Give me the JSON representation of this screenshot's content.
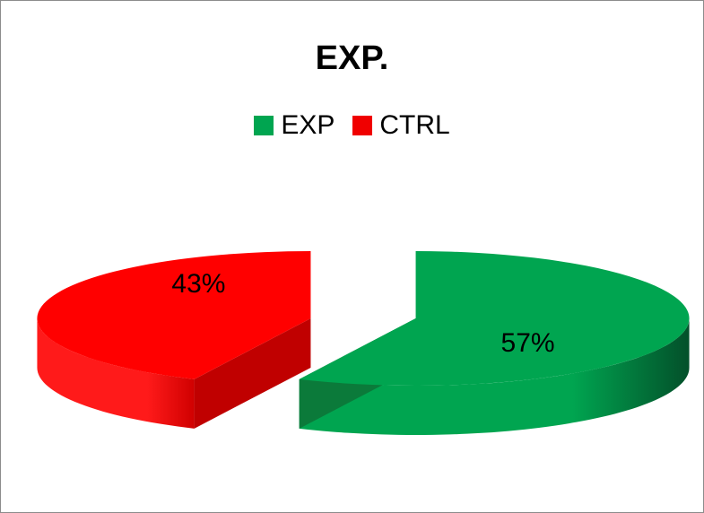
{
  "chart_data": {
    "type": "pie",
    "title": "EXP.",
    "legend_position": "top",
    "slices": [
      {
        "label": "EXP",
        "value": 57,
        "data_label": "57%",
        "color": "#00a550",
        "side_color": "#0b7a3a"
      },
      {
        "label": "CTRL",
        "value": 43,
        "data_label": "43%",
        "color": "#f00000",
        "side_color": "#c00000"
      }
    ],
    "style": "3d-exploded"
  }
}
